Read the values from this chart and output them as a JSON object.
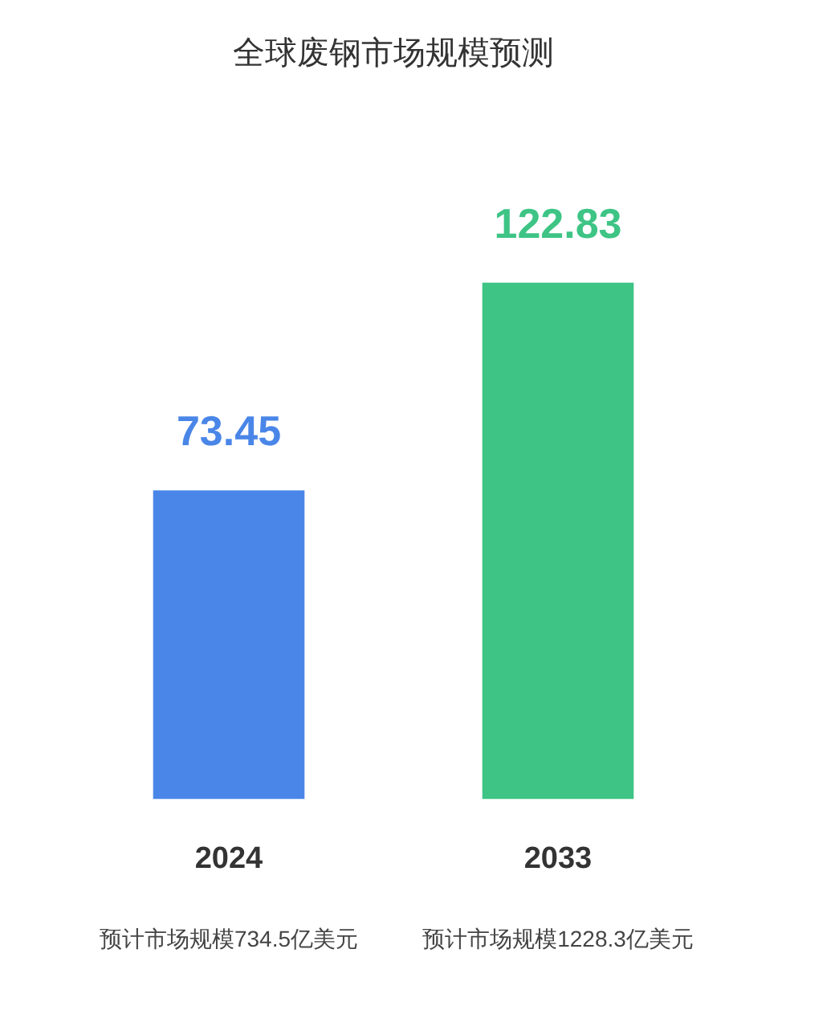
{
  "chart_data": {
    "type": "bar",
    "title": "全球废钢市场规模预测",
    "categories": [
      "2024",
      "2033"
    ],
    "values": [
      73.45,
      122.83
    ],
    "colors": [
      "#4a86e8",
      "#3ec485"
    ],
    "data_labels": true,
    "grid": false,
    "legend": false,
    "annotations": [
      "预计市场规模734.5亿美元",
      "预计市场规模1228.3亿美元"
    ]
  }
}
